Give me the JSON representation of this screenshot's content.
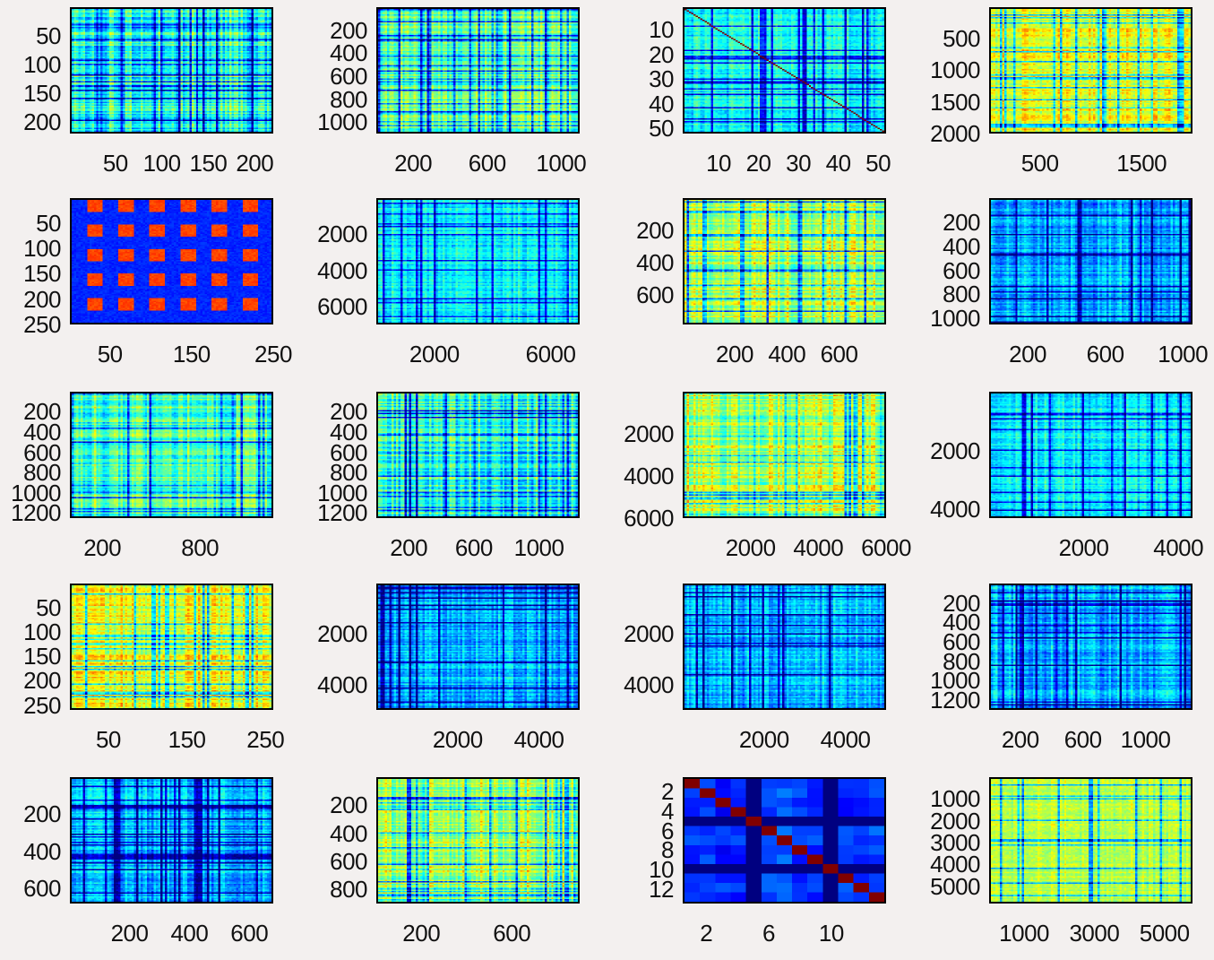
{
  "chart_data": [
    {
      "type": "heatmap",
      "n": 220,
      "style": "blocks",
      "yticks": [
        "50",
        "100",
        "150",
        "200"
      ],
      "xticks": [
        "50",
        "100",
        "150",
        "200"
      ],
      "xlim": [
        1,
        220
      ],
      "ylim": [
        1,
        220
      ]
    },
    {
      "type": "heatmap",
      "n": 1100,
      "style": "stripes",
      "yticks": [
        "200",
        "400",
        "600",
        "800",
        "1000"
      ],
      "xticks": [
        "200",
        "600",
        "1000"
      ],
      "xlim": [
        1,
        1100
      ],
      "ylim": [
        1,
        1100
      ]
    },
    {
      "type": "heatmap",
      "n": 52,
      "style": "diag",
      "yticks": [
        "10",
        "20",
        "30",
        "40",
        "50"
      ],
      "xticks": [
        "10",
        "20",
        "30",
        "40",
        "50"
      ],
      "xlim": [
        1,
        52
      ],
      "ylim": [
        1,
        52
      ]
    },
    {
      "type": "heatmap",
      "n": 2000,
      "style": "warm",
      "yticks": [
        "500",
        "1000",
        "1500",
        "2000"
      ],
      "xticks": [
        "500",
        "1500"
      ],
      "xlim": [
        1,
        2000
      ],
      "ylim": [
        1,
        2000
      ]
    },
    {
      "type": "heatmap",
      "n": 250,
      "style": "yellowblocks",
      "yticks": [
        "50",
        "100",
        "150",
        "200",
        "250"
      ],
      "xticks": [
        "50",
        "150",
        "250"
      ],
      "xlim": [
        1,
        250
      ],
      "ylim": [
        1,
        250
      ]
    },
    {
      "type": "heatmap",
      "n": 7000,
      "style": "cyan",
      "yticks": [
        "2000",
        "4000",
        "6000"
      ],
      "xticks": [
        "2000",
        "6000"
      ],
      "xlim": [
        1,
        7000
      ],
      "ylim": [
        1,
        7000
      ]
    },
    {
      "type": "heatmap",
      "n": 780,
      "style": "warmstripes",
      "yticks": [
        "200",
        "400",
        "600"
      ],
      "xticks": [
        "200",
        "400",
        "600"
      ],
      "xlim": [
        1,
        780
      ],
      "ylim": [
        1,
        780
      ]
    },
    {
      "type": "heatmap",
      "n": 1050,
      "style": "bluecyan",
      "yticks": [
        "200",
        "400",
        "600",
        "800",
        "1000"
      ],
      "xticks": [
        "200",
        "600",
        "1000"
      ],
      "xlim": [
        1,
        1050
      ],
      "ylim": [
        1,
        1050
      ]
    },
    {
      "type": "heatmap",
      "n": 1250,
      "style": "stripes",
      "yticks": [
        "200",
        "400",
        "600",
        "800",
        "1000",
        "1200"
      ],
      "xticks": [
        "200",
        "800"
      ],
      "xlim": [
        1,
        1250
      ],
      "ylim": [
        1,
        1250
      ]
    },
    {
      "type": "heatmap",
      "n": 1250,
      "style": "blocks",
      "yticks": [
        "200",
        "400",
        "600",
        "800",
        "1000",
        "1200"
      ],
      "xticks": [
        "200",
        "600",
        "1000"
      ],
      "xlim": [
        1,
        1250
      ],
      "ylim": [
        1,
        1250
      ]
    },
    {
      "type": "heatmap",
      "n": 6000,
      "style": "warmstripes",
      "yticks": [
        "2000",
        "4000",
        "6000"
      ],
      "xticks": [
        "2000",
        "4000",
        "6000"
      ],
      "xlim": [
        1,
        6000
      ],
      "ylim": [
        1,
        6000
      ]
    },
    {
      "type": "heatmap",
      "n": 4300,
      "style": "cyan",
      "yticks": [
        "2000",
        "4000"
      ],
      "xticks": [
        "2000",
        "4000"
      ],
      "xlim": [
        1,
        4300
      ],
      "ylim": [
        1,
        4300
      ]
    },
    {
      "type": "heatmap",
      "n": 260,
      "style": "warm",
      "yticks": [
        "50",
        "100",
        "150",
        "200",
        "250"
      ],
      "xticks": [
        "50",
        "150",
        "250"
      ],
      "xlim": [
        1,
        260
      ],
      "ylim": [
        1,
        260
      ]
    },
    {
      "type": "heatmap",
      "n": 5000,
      "style": "bluecyan",
      "yticks": [
        "2000",
        "4000"
      ],
      "xticks": [
        "2000",
        "4000"
      ],
      "xlim": [
        1,
        5000
      ],
      "ylim": [
        1,
        5000
      ]
    },
    {
      "type": "heatmap",
      "n": 5000,
      "style": "bluecyan",
      "yticks": [
        "2000",
        "4000"
      ],
      "xticks": [
        "2000",
        "4000"
      ],
      "xlim": [
        1,
        5000
      ],
      "ylim": [
        1,
        5000
      ]
    },
    {
      "type": "heatmap",
      "n": 1300,
      "style": "bluecyan",
      "yticks": [
        "200",
        "400",
        "600",
        "800",
        "1000",
        "1200"
      ],
      "xticks": [
        "200",
        "600",
        "1000"
      ],
      "xlim": [
        1,
        1300
      ],
      "ylim": [
        1,
        1300
      ]
    },
    {
      "type": "heatmap",
      "n": 680,
      "style": "bluecyan",
      "yticks": [
        "200",
        "400",
        "600"
      ],
      "xticks": [
        "200",
        "400",
        "600"
      ],
      "xlim": [
        1,
        680
      ],
      "ylim": [
        1,
        680
      ]
    },
    {
      "type": "heatmap",
      "n": 900,
      "style": "warmstripes",
      "yticks": [
        "200",
        "400",
        "600",
        "800"
      ],
      "xticks": [
        "200",
        "600"
      ],
      "xlim": [
        1,
        900
      ],
      "ylim": [
        1,
        900
      ]
    },
    {
      "type": "heatmap",
      "n": 13,
      "style": "diagblocks",
      "yticks": [
        "2",
        "4",
        "6",
        "8",
        "10",
        "12"
      ],
      "xticks": [
        "2",
        "6",
        "10"
      ],
      "xlim": [
        0.5,
        13.5
      ],
      "ylim": [
        0.5,
        13.5
      ]
    },
    {
      "type": "heatmap",
      "n": 5800,
      "style": "yellowflat",
      "yticks": [
        "1000",
        "2000",
        "3000",
        "4000",
        "5000"
      ],
      "xticks": [
        "1000",
        "3000",
        "5000"
      ],
      "xlim": [
        1,
        5800
      ],
      "ylim": [
        1,
        5800
      ]
    }
  ]
}
